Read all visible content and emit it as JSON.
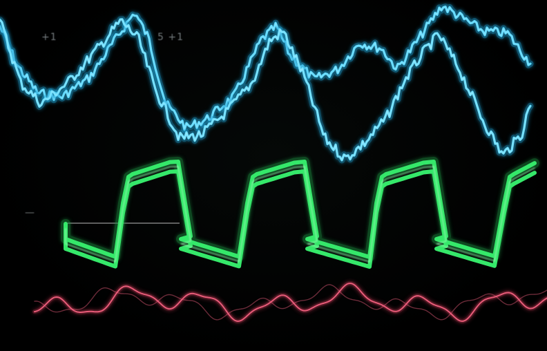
{
  "screen": {
    "background_color": "#000000",
    "labels": {
      "left": "+1",
      "middle": "5 +1",
      "marker": "—"
    }
  },
  "traces": [
    {
      "id": "cyan-upper",
      "color": "#3fd2ff",
      "glow": "#1d9ccc",
      "kind": "noisy-wave"
    },
    {
      "id": "cyan-lower",
      "color": "#4fd8ff",
      "glow": "#1d9ccc",
      "kind": "noisy-wave"
    },
    {
      "id": "green-square",
      "color": "#35e86a",
      "glow": "#1a8f3f",
      "kind": "square-wave"
    },
    {
      "id": "pink-sine",
      "color": "#f0607e",
      "glow": "#b0304c",
      "kind": "ripple-wave"
    },
    {
      "id": "baseline",
      "color": "#c9c9c9",
      "kind": "reference-line"
    }
  ]
}
